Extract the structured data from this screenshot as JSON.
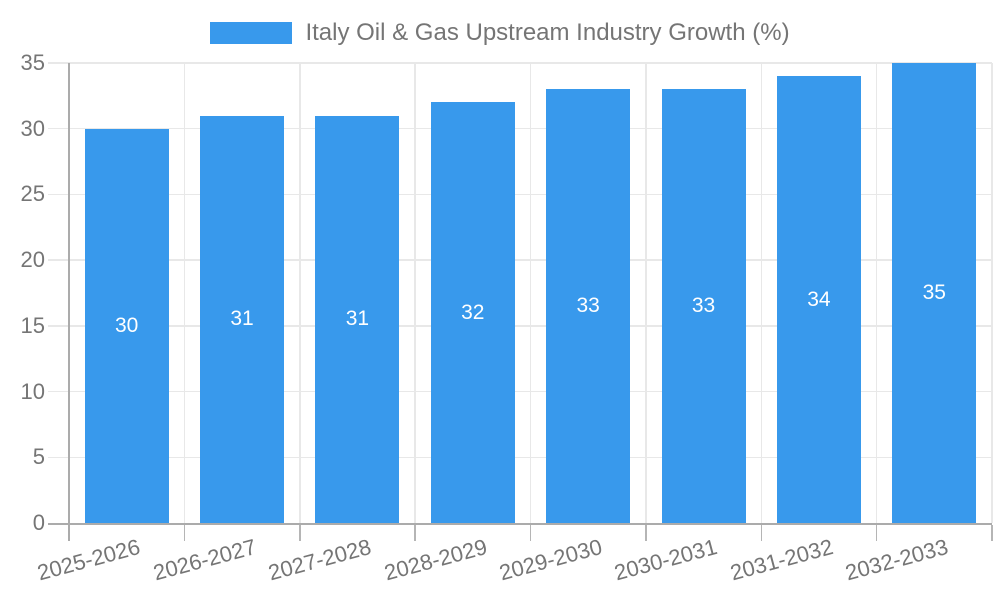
{
  "chart_data": {
    "type": "bar",
    "title": "Italy Oil & Gas Upstream Industry Growth (%)",
    "categories": [
      "2025-2026",
      "2026-2027",
      "2027-2028",
      "2028-2029",
      "2029-2030",
      "2030-2031",
      "2031-2032",
      "2032-2033"
    ],
    "values": [
      30,
      31,
      31,
      32,
      33,
      33,
      34,
      35
    ],
    "xlabel": "",
    "ylabel": "",
    "ylim": [
      0,
      35
    ],
    "yticks": [
      0,
      5,
      10,
      15,
      20,
      25,
      30,
      35
    ],
    "grid": true,
    "legend_position": "top-center",
    "bar_labels_shown": true,
    "x_label_rotation_deg": -15,
    "colors": {
      "bar": "#3899EC",
      "bar_label": "#FFFFFF",
      "axis_text": "#757575",
      "grid_line": "#E8E8E8",
      "axis_line": "#ABABAB",
      "tick_line": "#B5B5B5",
      "background": "#FFFFFF"
    }
  }
}
